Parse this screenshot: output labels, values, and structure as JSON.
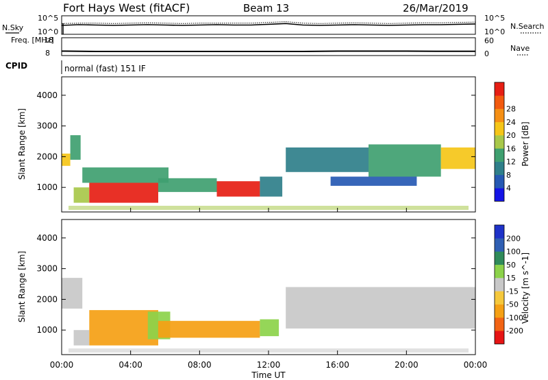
{
  "header": {
    "station": "Fort Hays West (fitACF)",
    "beam": "Beam 13",
    "date": "26/Mar/2019"
  },
  "chart_data": [
    {
      "type": "line",
      "name": "noise-panel",
      "left_label": "N.Sky",
      "right_label": "N.Search",
      "left_ticks": [
        "10^5",
        "10^0"
      ],
      "right_ticks": [
        "10^5",
        "10^0"
      ],
      "x": [
        0,
        1,
        2,
        3,
        4,
        5,
        6,
        7,
        8,
        9,
        10,
        11,
        12,
        13,
        14,
        15,
        16,
        17,
        18,
        19,
        20,
        21,
        22,
        23,
        24
      ],
      "series": [
        {
          "values": [
            2.4,
            2.6,
            2.5,
            2.4,
            2.5,
            2.6,
            2.5,
            2.4,
            2.5,
            2.6,
            2.5,
            2.5,
            2.7,
            2.9,
            2.5,
            2.4,
            2.5,
            2.6,
            2.5,
            2.4,
            2.5,
            2.6,
            2.6,
            2.7,
            2.8
          ]
        },
        {
          "values": [
            2.9,
            3.0,
            3.0,
            2.9,
            3.0,
            3.1,
            3.0,
            2.9,
            3.0,
            3.0,
            3.0,
            3.0,
            3.2,
            3.4,
            3.0,
            2.9,
            3.0,
            3.1,
            3.0,
            2.9,
            3.0,
            3.1,
            3.1,
            3.2,
            3.3
          ]
        }
      ],
      "ylim": [
        0,
        5
      ]
    },
    {
      "type": "line",
      "name": "frequency-panel",
      "left_label": "Freq. [MHz]",
      "right_label": "Nave",
      "left_ticks": [
        "18",
        "8"
      ],
      "right_ticks": [
        "60",
        "0"
      ],
      "x": [
        0,
        0.2,
        2,
        4,
        6,
        8,
        10,
        12,
        14,
        16,
        18,
        20,
        22,
        24
      ],
      "series": [
        {
          "values": [
            10.5,
            10.5,
            10.3,
            10.3,
            10.3,
            10.3,
            10.3,
            10.3,
            10.3,
            10.5,
            10.5,
            10.5,
            10.4,
            10.4
          ]
        }
      ],
      "ylim": [
        8,
        18
      ]
    },
    {
      "type": "heatmap",
      "name": "power-panel",
      "cpid_label": "CPID",
      "mode_text": "normal (fast) 151 IF",
      "ylabel": "Slant Range [km]",
      "yticks": [
        "1000",
        "2000",
        "3000",
        "4000"
      ],
      "ylim": [
        200,
        4600
      ],
      "colorbar_label": "Power [dB]",
      "colorbar_ticks": [
        "4",
        "8",
        "12",
        "16",
        "20",
        "24",
        "28"
      ],
      "colorbar_colors": [
        "#1414e6",
        "#2659b3",
        "#2f7f8a",
        "#3fa070",
        "#a8c84a",
        "#f5c518",
        "#f58f14",
        "#f25a0f",
        "#e61e14"
      ],
      "cells": [
        {
          "t0": 0.0,
          "t1": 0.5,
          "r0": 1700,
          "r1": 2100,
          "level": 5
        },
        {
          "t0": 0.5,
          "t1": 1.1,
          "r0": 1900,
          "r1": 2700,
          "level": 3
        },
        {
          "t0": 0.7,
          "t1": 1.6,
          "r0": 500,
          "r1": 1000,
          "level": 4
        },
        {
          "t0": 1.6,
          "t1": 5.6,
          "r0": 500,
          "r1": 1150,
          "level": 8
        },
        {
          "t0": 1.2,
          "t1": 6.2,
          "r0": 1150,
          "r1": 1650,
          "level": 3
        },
        {
          "t0": 5.6,
          "t1": 9.0,
          "r0": 850,
          "r1": 1300,
          "level": 3
        },
        {
          "t0": 9.0,
          "t1": 11.5,
          "r0": 700,
          "r1": 1200,
          "level": 8
        },
        {
          "t0": 11.5,
          "t1": 12.8,
          "r0": 700,
          "r1": 1350,
          "level": 2
        },
        {
          "t0": 13.0,
          "t1": 17.8,
          "r0": 1500,
          "r1": 2300,
          "level": 2
        },
        {
          "t0": 15.6,
          "t1": 20.6,
          "r0": 1050,
          "r1": 1350,
          "level": 1
        },
        {
          "t0": 17.8,
          "t1": 22.0,
          "r0": 1350,
          "r1": 2400,
          "level": 3
        },
        {
          "t0": 22.0,
          "t1": 24.0,
          "r0": 1600,
          "r1": 2300,
          "level": 5
        }
      ]
    },
    {
      "type": "heatmap",
      "name": "velocity-panel",
      "xlabel": "Time UT",
      "ylabel": "Slant Range [km]",
      "yticks": [
        "1000",
        "2000",
        "3000",
        "4000"
      ],
      "xticks": [
        "00:00",
        "04:00",
        "08:00",
        "12:00",
        "16:00",
        "20:00",
        "00:00"
      ],
      "xlim": [
        0,
        24
      ],
      "ylim": [
        200,
        4600
      ],
      "colorbar_label": "Velocity [m s^-1]",
      "colorbar_ticks": [
        "-200",
        "-100",
        "-50",
        "-15",
        "15",
        "50",
        "100",
        "200"
      ],
      "colorbar_colors": [
        "#e61414",
        "#f26414",
        "#f5a014",
        "#f5c83c",
        "#c8c8c8",
        "#8cd24a",
        "#2f8a5a",
        "#2f5fb3",
        "#1e32c8"
      ],
      "cells": [
        {
          "t0": 0.0,
          "t1": 1.2,
          "r0": 1700,
          "r1": 2700,
          "level": 4
        },
        {
          "t0": 0.7,
          "t1": 1.6,
          "r0": 500,
          "r1": 1000,
          "level": 4
        },
        {
          "t0": 1.6,
          "t1": 5.6,
          "r0": 500,
          "r1": 1650,
          "level": 2
        },
        {
          "t0": 5.0,
          "t1": 6.3,
          "r0": 700,
          "r1": 1600,
          "level": 5
        },
        {
          "t0": 5.6,
          "t1": 11.5,
          "r0": 750,
          "r1": 1300,
          "level": 2
        },
        {
          "t0": 11.5,
          "t1": 12.6,
          "r0": 800,
          "r1": 1350,
          "level": 5
        },
        {
          "t0": 13.0,
          "t1": 24.0,
          "r0": 1050,
          "r1": 2400,
          "level": 4
        }
      ]
    }
  ]
}
